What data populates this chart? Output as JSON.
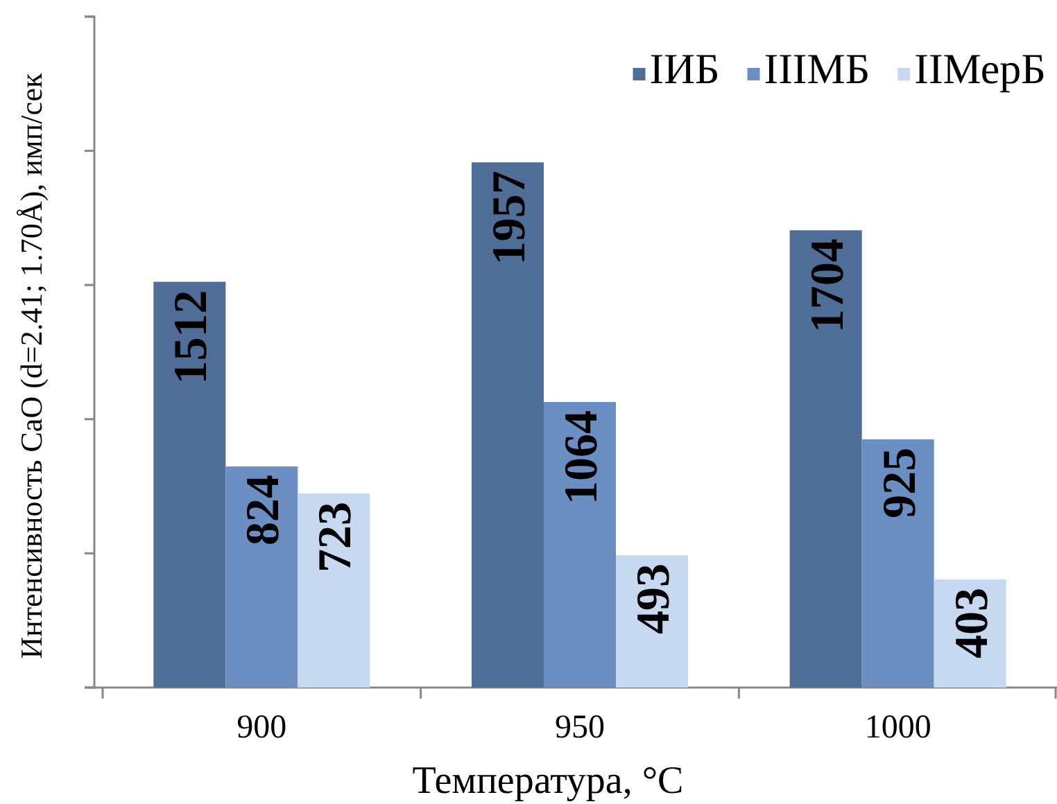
{
  "chart_data": {
    "type": "bar",
    "xlabel": "Температура, °С",
    "ylabel": "Интенсивность CaO (d=2.41; 1.70Å), имп/сек",
    "categories": [
      "900",
      "950",
      "1000"
    ],
    "series": [
      {
        "name": "IИБ",
        "color": "#4f6e97",
        "values": [
          1512,
          1957,
          1704
        ]
      },
      {
        "name": "IIIМБ",
        "color": "#6b8fc3",
        "values": [
          824,
          1064,
          925
        ]
      },
      {
        "name": "IIМерБ",
        "color": "#c6d9f1",
        "values": [
          723,
          493,
          403
        ]
      }
    ],
    "ylim": [
      0,
      2500
    ],
    "yticks": [
      {
        "value": 0,
        "label": null
      },
      {
        "value": 500,
        "label": null
      },
      {
        "value": 1000,
        "label": null
      },
      {
        "value": 1500,
        "label": null
      },
      {
        "value": 2000,
        "label": null
      },
      {
        "value": 2500,
        "label": null
      }
    ],
    "tick_labels": "x",
    "data_labels": true,
    "grid": false,
    "legend": "top right"
  }
}
